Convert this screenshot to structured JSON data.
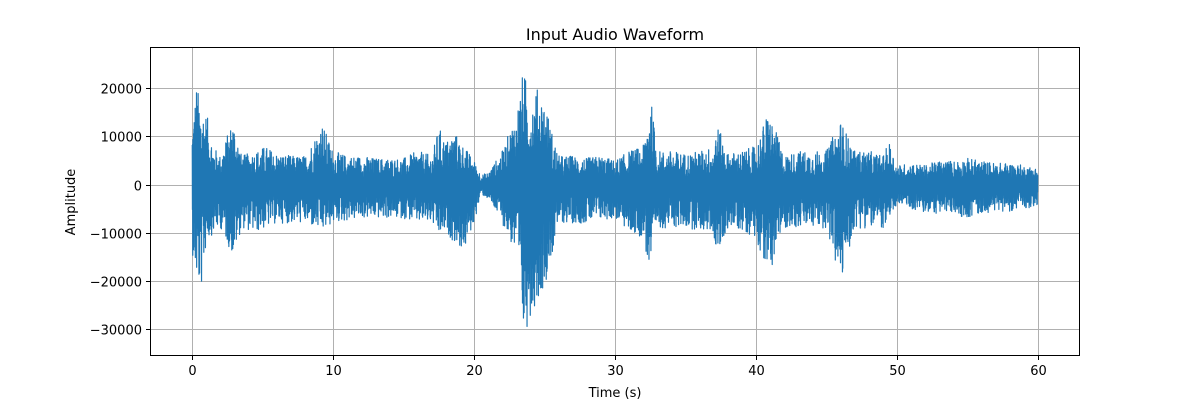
{
  "chart_data": {
    "type": "line",
    "title": "Input Audio Waveform",
    "xlabel": "Time (s)",
    "ylabel": "Amplitude",
    "xlim": [
      -3,
      63
    ],
    "ylim": [
      -35500,
      28500
    ],
    "grid": true,
    "x_ticks": [
      {
        "value": 0,
        "label": "0"
      },
      {
        "value": 10,
        "label": "10"
      },
      {
        "value": 20,
        "label": "20"
      },
      {
        "value": 30,
        "label": "30"
      },
      {
        "value": 40,
        "label": "40"
      },
      {
        "value": 50,
        "label": "50"
      },
      {
        "value": 60,
        "label": "60"
      }
    ],
    "y_ticks": [
      {
        "value": 20000,
        "label": "20000"
      },
      {
        "value": 10000,
        "label": "10000"
      },
      {
        "value": 0,
        "label": "0"
      },
      {
        "value": -10000,
        "label": "−10000"
      },
      {
        "value": -20000,
        "label": "−20000"
      },
      {
        "value": -30000,
        "label": "−30000"
      }
    ],
    "series": [
      {
        "color": "#1f77b4",
        "time_range": [
          0,
          60
        ],
        "envelope": {
          "t": [
            0.0,
            0.3,
            0.6,
            1.0,
            1.5,
            2.0,
            2.9,
            3.5,
            4.5,
            5.2,
            6.0,
            7.0,
            8.0,
            9.2,
            10.0,
            11.0,
            12.0,
            13.0,
            14.0,
            15.0,
            16.0,
            17.0,
            17.5,
            18.0,
            18.6,
            19.3,
            20.0,
            20.5,
            21.0,
            22.0,
            23.0,
            23.5,
            24.0,
            24.5,
            25.0,
            25.6,
            26.0,
            27.0,
            28.0,
            29.0,
            30.0,
            31.0,
            32.0,
            32.5,
            33.0,
            34.0,
            35.0,
            36.0,
            37.0,
            37.2,
            38.0,
            39.0,
            40.0,
            40.9,
            42.0,
            43.0,
            44.0,
            45.0,
            46.0,
            47.0,
            48.0,
            49.0,
            49.5,
            50.0,
            51.0,
            52.0,
            53.0,
            54.0,
            55.0,
            56.0,
            57.0,
            58.0,
            59.0,
            60.0
          ],
          "upper": [
            13000,
            21000,
            17000,
            15000,
            8000,
            6000,
            14000,
            6000,
            7000,
            8000,
            6500,
            6000,
            6000,
            13000,
            7000,
            6000,
            6000,
            5500,
            5500,
            5500,
            7000,
            6000,
            12000,
            9000,
            11000,
            8000,
            5000,
            2000,
            2500,
            7000,
            15000,
            24000,
            18000,
            20000,
            18000,
            10000,
            6000,
            6000,
            5500,
            6000,
            5000,
            7000,
            8000,
            19000,
            7000,
            7000,
            6500,
            7000,
            8000,
            13000,
            6500,
            7000,
            8000,
            15500,
            6000,
            7000,
            7000,
            7000,
            13500,
            7000,
            7000,
            6000,
            9000,
            4000,
            4500,
            4000,
            5000,
            5000,
            5500,
            5000,
            4500,
            4500,
            4000,
            3500
          ],
          "lower": [
            -14000,
            -20000,
            -23000,
            -12000,
            -10000,
            -9000,
            -15000,
            -9000,
            -10000,
            -9000,
            -8000,
            -8000,
            -8000,
            -10000,
            -8000,
            -7500,
            -7000,
            -7000,
            -7000,
            -7000,
            -8000,
            -8000,
            -11000,
            -10000,
            -12000,
            -14000,
            -8000,
            -2000,
            -3000,
            -8000,
            -15000,
            -32500,
            -27000,
            -24000,
            -21000,
            -14000,
            -8000,
            -8000,
            -8000,
            -7500,
            -7000,
            -10000,
            -11000,
            -19000,
            -9000,
            -9000,
            -9000,
            -9500,
            -10000,
            -16000,
            -9000,
            -9500,
            -11000,
            -19000,
            -9000,
            -9000,
            -9000,
            -9000,
            -21000,
            -9000,
            -9000,
            -9000,
            -9000,
            -4000,
            -5000,
            -6000,
            -6000,
            -6000,
            -7000,
            -6000,
            -5500,
            -5500,
            -5000,
            -4500
          ]
        }
      }
    ]
  }
}
